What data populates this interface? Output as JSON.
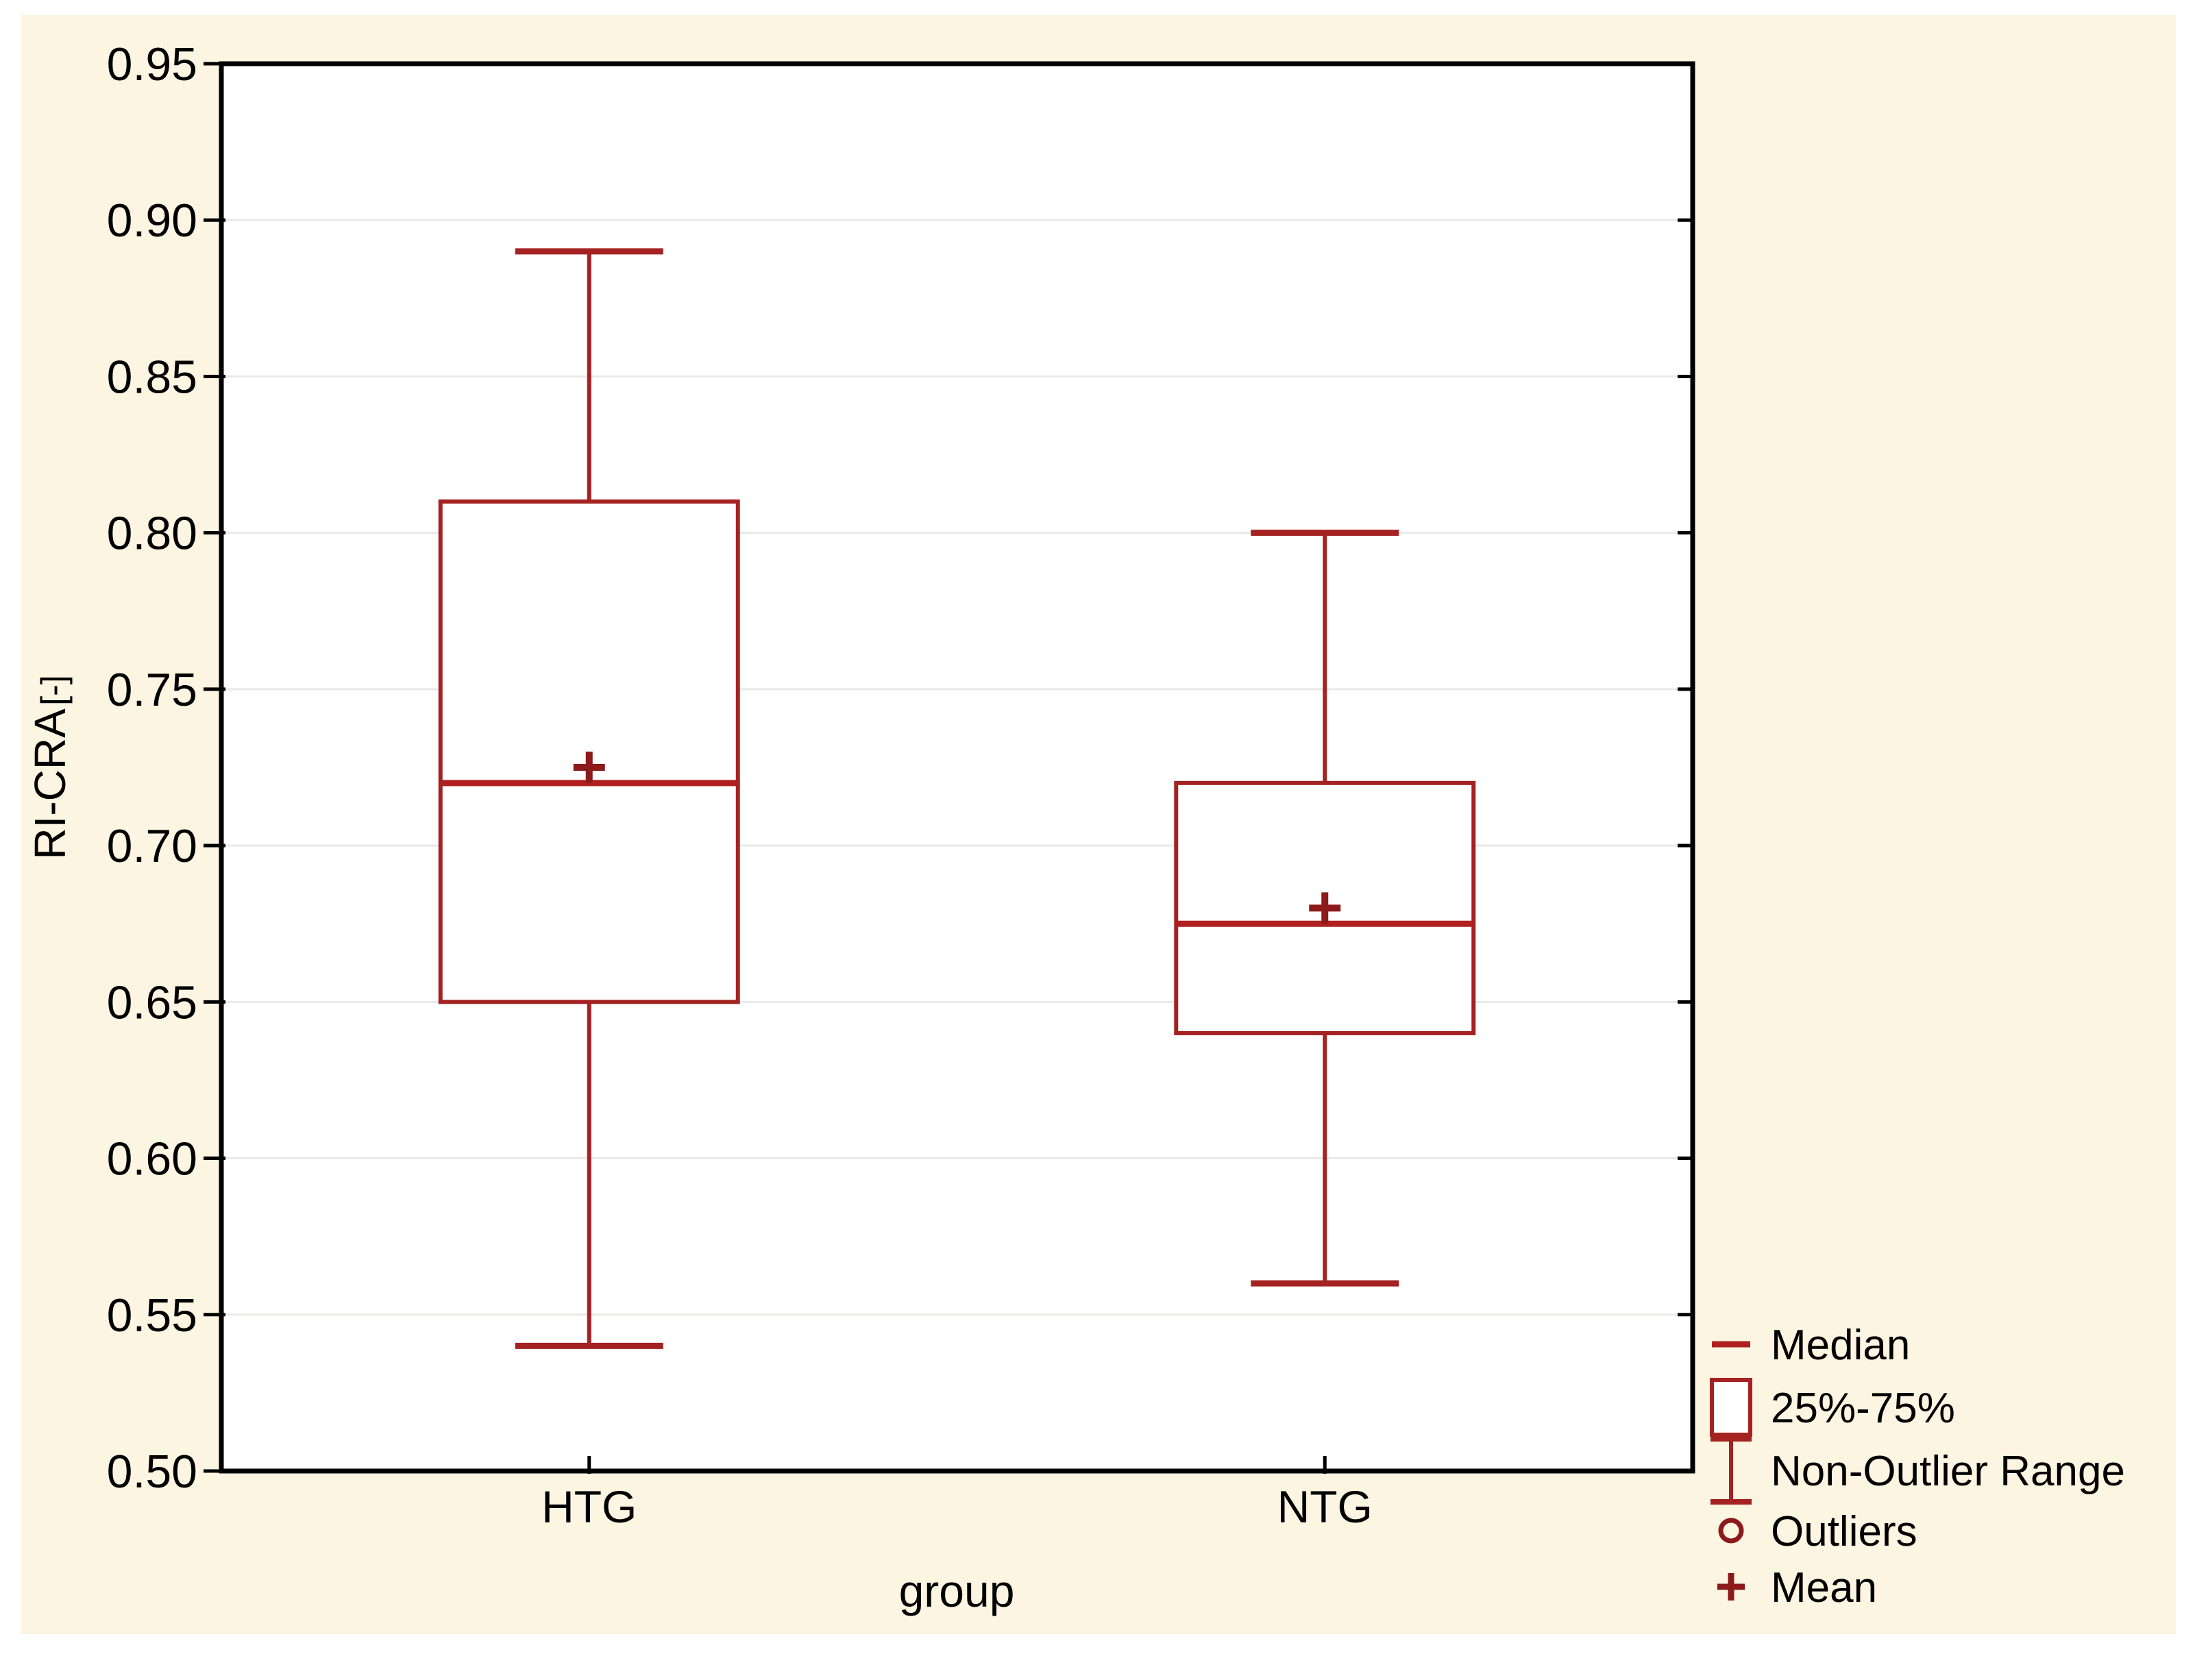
{
  "colors": {
    "page_background": "#ffffff",
    "figure_background": "#fbf5e1",
    "plot_background": "#ffffff",
    "frame": "#000000",
    "gridline": "#e9e9e7",
    "box_stroke": "#a42222",
    "median_stroke": "#b02020",
    "whisker_stroke": "#a42222",
    "mean_stroke": "#8c1a1a",
    "outlier_stroke": "#8c1a1a",
    "text": "#000000"
  },
  "chart_data": {
    "type": "box",
    "title": "",
    "xlabel": "group",
    "ylabel": "RI-CRA[-]",
    "ylabel_main": "RI-CRA",
    "ylabel_unit": "[-]",
    "ylim": [
      0.5,
      0.95
    ],
    "ytick_step": 0.05,
    "yticks": [
      0.95,
      0.9,
      0.85,
      0.8,
      0.75,
      0.7,
      0.65,
      0.6,
      0.55,
      0.5
    ],
    "ytick_labels": [
      "0.95",
      "0.90",
      "0.85",
      "0.80",
      "0.75",
      "0.70",
      "0.65",
      "0.60",
      "0.55",
      "0.50"
    ],
    "grid": "horizontal",
    "categories": [
      "HTG",
      "NTG"
    ],
    "series": [
      {
        "name": "HTG",
        "non_outlier_min": 0.54,
        "q1": 0.65,
        "median": 0.72,
        "mean": 0.725,
        "q3": 0.81,
        "non_outlier_max": 0.89,
        "outliers": []
      },
      {
        "name": "NTG",
        "non_outlier_min": 0.56,
        "q1": 0.64,
        "median": 0.675,
        "mean": 0.68,
        "q3": 0.72,
        "non_outlier_max": 0.8,
        "outliers": []
      }
    ],
    "legend": {
      "position": "bottom-right",
      "items": [
        {
          "symbol": "median-line",
          "label": "Median"
        },
        {
          "symbol": "iqr-box",
          "label": "25%-75%"
        },
        {
          "symbol": "whisker-range",
          "label": "Non-Outlier Range"
        },
        {
          "symbol": "outlier-marker",
          "label": "Outliers"
        },
        {
          "symbol": "mean-marker",
          "label": "Mean"
        }
      ]
    }
  }
}
